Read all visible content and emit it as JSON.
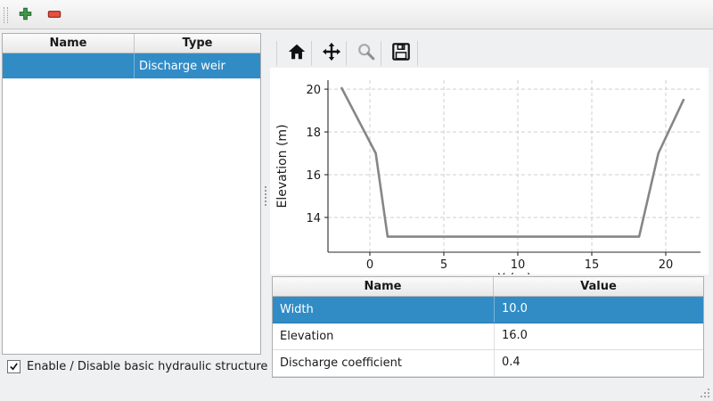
{
  "selection_color": "#318cc6",
  "toolbar": {
    "icons": {
      "add": "plus-icon",
      "remove": "minus-icon"
    }
  },
  "structures_table": {
    "columns": [
      "Name",
      "Type"
    ],
    "rows": [
      {
        "name": "",
        "type": "Discharge weir",
        "selected": true
      }
    ]
  },
  "enable_checkbox": {
    "label": "Enable / Disable basic hydraulic structure",
    "checked": true
  },
  "plot_toolbar": {
    "icons": {
      "home": "home-icon",
      "pan": "move-arrows-icon",
      "zoom": "magnifier-icon",
      "save": "floppy-disk-icon"
    }
  },
  "chart_data": {
    "type": "line",
    "title": "",
    "xlabel": "X (m)",
    "ylabel": "Elevation (m)",
    "x": [
      -1.9,
      0.4,
      1.2,
      18.2,
      19.5,
      21.2
    ],
    "y": [
      20.05,
      17.0,
      13.1,
      13.1,
      17.0,
      19.5
    ],
    "xticks": [
      0,
      5,
      10,
      15,
      20
    ],
    "yticks": [
      14,
      16,
      18,
      20
    ],
    "xlim": [
      -2.83,
      22.35
    ],
    "ylim": [
      12.375,
      20.42
    ],
    "grid": true,
    "legend": false,
    "line_color": "#868686"
  },
  "properties_table": {
    "columns": [
      "Name",
      "Value"
    ],
    "rows": [
      {
        "name": "Width",
        "value": "10.0",
        "selected": true
      },
      {
        "name": "Elevation",
        "value": "16.0",
        "selected": false
      },
      {
        "name": "Discharge coefficient",
        "value": "0.4",
        "selected": false
      }
    ]
  }
}
